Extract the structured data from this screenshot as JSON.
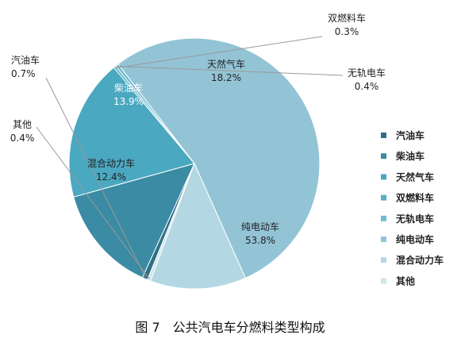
{
  "chart_data": {
    "type": "pie",
    "caption": "图 7　公共汽电车分燃料类型构成",
    "slices": [
      {
        "name": "汽油车",
        "value": 0.7,
        "label": "0.7%",
        "color": "#2f6f86"
      },
      {
        "name": "柴油车",
        "value": 13.9,
        "label": "13.9%",
        "color": "#3a8ba3"
      },
      {
        "name": "天然气车",
        "value": 18.2,
        "label": "18.2%",
        "color": "#4aa8c0"
      },
      {
        "name": "双燃料车",
        "value": 0.3,
        "label": "0.3%",
        "color": "#55afc5"
      },
      {
        "name": "无轨电车",
        "value": 0.4,
        "label": "0.4%",
        "color": "#6cbcd0"
      },
      {
        "name": "纯电动车",
        "value": 53.8,
        "label": "53.8%",
        "color": "#93c4d6"
      },
      {
        "name": "混合动力车",
        "value": 12.4,
        "label": "12.4%",
        "color": "#b3d8e3"
      },
      {
        "name": "其他",
        "value": 0.4,
        "label": "0.4%",
        "color": "#cde6ee"
      }
    ],
    "legend_position": "right"
  }
}
